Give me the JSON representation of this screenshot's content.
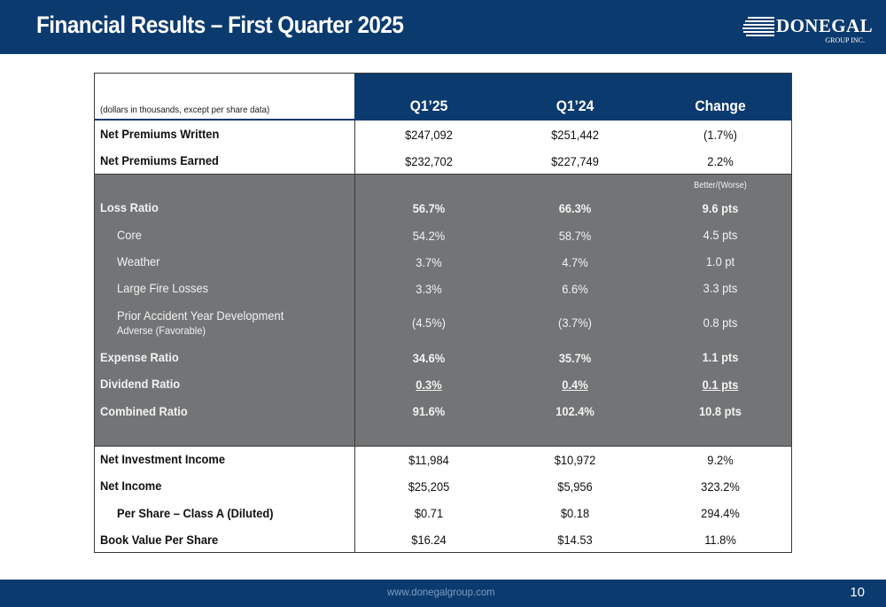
{
  "header": {
    "title": "Financial Results – First Quarter 2025",
    "logo_text": "DONEGAL",
    "logo_sub": "GROUP INC."
  },
  "table": {
    "note": "(dollars in thousands, except per share data)",
    "columns": [
      "Q1’25",
      "Q1’24",
      "Change"
    ],
    "top_rows": [
      {
        "label": "Net Premiums Written",
        "q125": "$247,092",
        "q124": "$251,442",
        "change": "(1.7%)"
      },
      {
        "label": "Net Premiums Earned",
        "q125": "$232,702",
        "q124": "$227,749",
        "change": "2.2%"
      }
    ],
    "better_worse": "Better/(Worse)",
    "ratio_rows": [
      {
        "label": "Loss Ratio",
        "q125": "56.7%",
        "q124": "66.3%",
        "change": "9.6 pts"
      },
      {
        "label": "Core",
        "q125": "54.2%",
        "q124": "58.7%",
        "change": "4.5 pts"
      },
      {
        "label": "Weather",
        "q125": "3.7%",
        "q124": "4.7%",
        "change": "1.0 pt"
      },
      {
        "label": "Large Fire Losses",
        "q125": "3.3%",
        "q124": "6.6%",
        "change": "3.3 pts"
      },
      {
        "label": "Prior Accident Year Development",
        "sublabel": "Adverse (Favorable)",
        "q125": "(4.5%)",
        "q124": "(3.7%)",
        "change": "0.8 pts"
      },
      {
        "label": "Expense Ratio",
        "q125": "34.6%",
        "q124": "35.7%",
        "change": "1.1 pts"
      },
      {
        "label": "Dividend Ratio",
        "q125": "0.3%",
        "q124": "0.4%",
        "change": "0.1 pts"
      },
      {
        "label": "Combined Ratio",
        "q125": "91.6%",
        "q124": "102.4%",
        "change": "10.8 pts"
      }
    ],
    "bottom_rows": [
      {
        "label": "Net Investment Income",
        "q125": "$11,984",
        "q124": "$10,972",
        "change": "9.2%"
      },
      {
        "label": "Net Income",
        "q125": "$25,205",
        "q124": "$5,956",
        "change": "323.2%"
      },
      {
        "label": "Per Share – Class A (Diluted)",
        "q125": "$0.71",
        "q124": "$0.18",
        "change": "294.4%"
      },
      {
        "label": "Book Value Per Share",
        "q125": "$16.24",
        "q124": "$14.53",
        "change": "11.8%"
      }
    ]
  },
  "footer": {
    "url": "www.donegalgroup.com",
    "page_number": "10"
  },
  "colors": {
    "navy": "#0b3a6e",
    "gray_band": "#727476"
  }
}
